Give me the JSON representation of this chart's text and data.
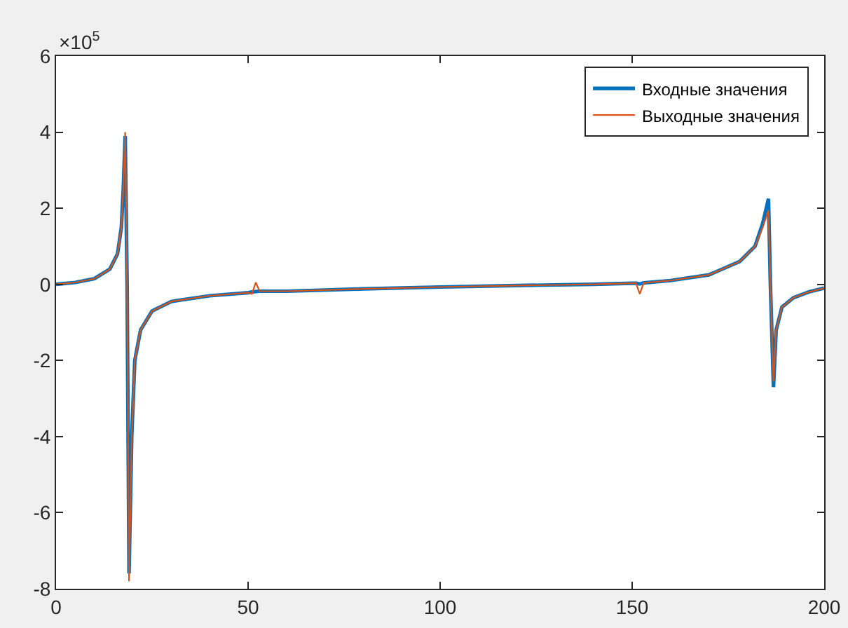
{
  "chart_data": {
    "type": "line",
    "x": [
      0,
      5,
      10,
      14,
      16,
      17,
      17.5,
      18,
      18.5,
      19,
      19.7,
      20.5,
      22,
      25,
      30,
      40,
      50,
      51,
      52,
      53,
      60,
      80,
      100,
      120,
      140,
      150,
      151,
      152,
      153,
      160,
      170,
      178,
      182,
      184,
      185.5,
      186,
      186.8,
      187.5,
      189,
      192,
      196,
      200
    ],
    "series": [
      {
        "name": "Входные значения",
        "color": "#0072bd",
        "values": [
          0,
          0.05,
          0.15,
          0.4,
          0.8,
          1.5,
          2.5,
          3.9,
          0,
          -7.6,
          -4,
          -2,
          -1.2,
          -0.7,
          -0.45,
          -0.3,
          -0.22,
          -0.2,
          -0.19,
          -0.18,
          -0.18,
          -0.12,
          -0.07,
          -0.03,
          0,
          0.03,
          0.03,
          0.01,
          0.04,
          0.1,
          0.25,
          0.6,
          1,
          1.6,
          2.25,
          0,
          -2.7,
          -1.2,
          -0.6,
          -0.35,
          -0.2,
          -0.1
        ]
      },
      {
        "name": "Выходные значения",
        "color": "#d95319",
        "values": [
          0,
          0.05,
          0.15,
          0.4,
          0.8,
          1.5,
          2.5,
          4,
          0,
          -7.8,
          -4,
          -2,
          -1.2,
          -0.7,
          -0.45,
          -0.3,
          -0.22,
          -0.25,
          0.05,
          -0.18,
          -0.18,
          -0.12,
          -0.07,
          -0.03,
          0,
          0.03,
          0.03,
          -0.25,
          0.04,
          0.1,
          0.25,
          0.6,
          1,
          1.5,
          1.95,
          0,
          -2.55,
          -1.2,
          -0.6,
          -0.35,
          -0.2,
          -0.1
        ]
      }
    ],
    "xlim": [
      0,
      200
    ],
    "xticks": [
      0,
      50,
      100,
      150,
      200
    ],
    "ylim": [
      -8,
      6
    ],
    "yticks": [
      -8,
      -6,
      -4,
      -2,
      0,
      2,
      4,
      6
    ],
    "ylabel": "×10$^{5}$",
    "legend": "top right",
    "grid": false,
    "marker": "none",
    "line_style": "solid"
  }
}
